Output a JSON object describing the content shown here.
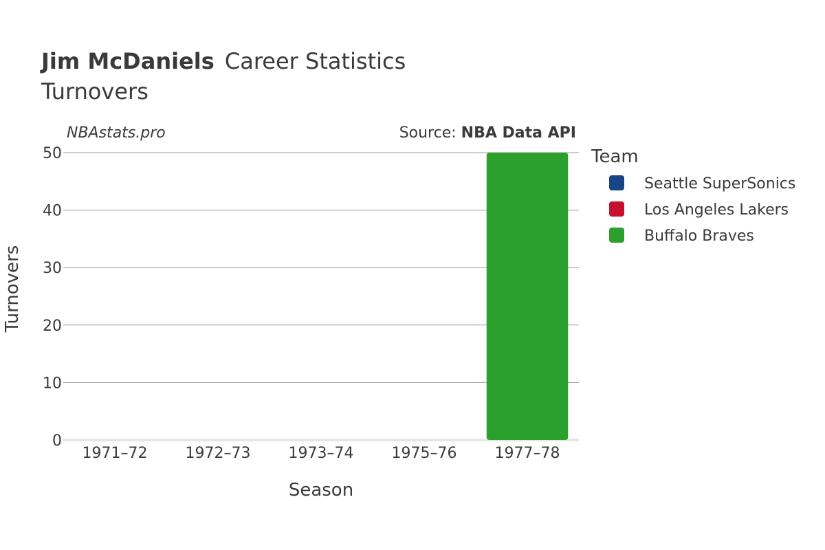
{
  "header": {
    "player_name": "Jim McDaniels",
    "title_rest": "Career Statistics",
    "subtitle": "Turnovers"
  },
  "brand": "NBAstats.pro",
  "source": {
    "prefix": "Source: ",
    "name": "NBA Data API"
  },
  "legend": {
    "title": "Team",
    "items": [
      {
        "name": "Seattle SuperSonics",
        "color": "#1a4488"
      },
      {
        "name": "Los Angeles Lakers",
        "color": "#c8102e"
      },
      {
        "name": "Buffalo Braves",
        "color": "#2ca02c"
      }
    ]
  },
  "chart_data": {
    "type": "bar",
    "xlabel": "Season",
    "ylabel": "Turnovers",
    "categories": [
      "1971–72",
      "1972–73",
      "1973–74",
      "1975–76",
      "1977–78"
    ],
    "ylim": [
      0,
      50
    ],
    "yticks": [
      0,
      10,
      20,
      30,
      40,
      50
    ],
    "grid": true,
    "legend_position": "right",
    "series": [
      {
        "name": "Seattle SuperSonics",
        "color": "#1a4488",
        "values": [
          0,
          0,
          0,
          0,
          0
        ]
      },
      {
        "name": "Los Angeles Lakers",
        "color": "#c8102e",
        "values": [
          0,
          0,
          0,
          0,
          0
        ]
      },
      {
        "name": "Buffalo Braves",
        "color": "#2ca02c",
        "values": [
          0,
          0,
          0,
          0,
          50
        ]
      }
    ]
  }
}
